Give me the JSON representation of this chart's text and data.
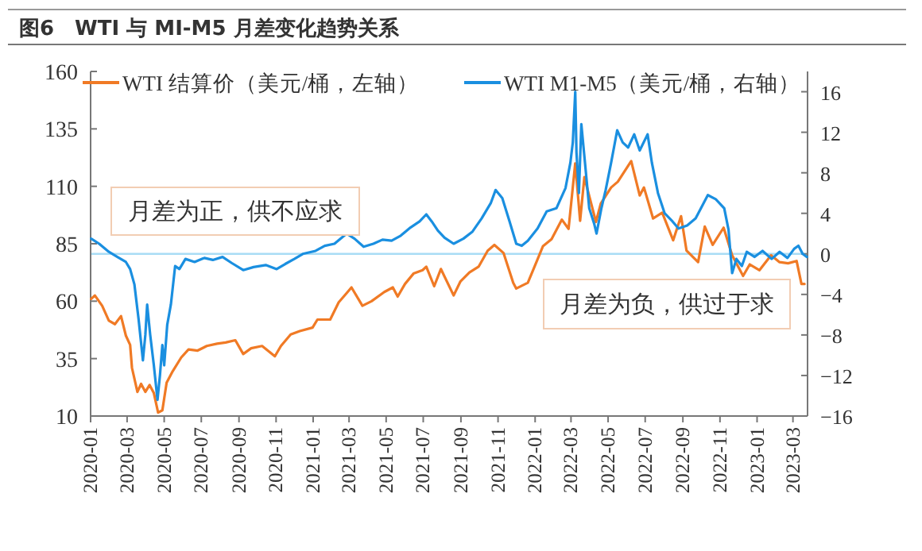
{
  "chart_data": {
    "type": "line",
    "title": "图6　WTI 与 MI-M5 月差变化趋势关系",
    "legend": "top",
    "xlim": [
      "2020-01-01",
      "2023-03-25"
    ],
    "xticks": [
      "2020-01",
      "2020-03",
      "2020-05",
      "2020-07",
      "2020-09",
      "2020-11",
      "2021-01",
      "2021-03",
      "2021-05",
      "2021-07",
      "2021-09",
      "2021-11",
      "2022-01",
      "2022-03",
      "2022-05",
      "2022-07",
      "2022-09",
      "2022-11",
      "2023-01",
      "2023-03"
    ],
    "ylim": [
      10,
      160
    ],
    "yticks": [
      10,
      35,
      60,
      85,
      110,
      135,
      160
    ],
    "y2lim": [
      -16,
      18
    ],
    "y2ticks": [
      -16,
      -12,
      -8,
      -4,
      0,
      4,
      8,
      12,
      16
    ],
    "ref_lines": [
      {
        "axis": "y2",
        "value": 0,
        "color": "#a8dcf5"
      }
    ],
    "annotations": [
      "月差为正，供不应求",
      "月差为负，供过于求"
    ],
    "series": [
      {
        "name": "WTI 结算价（美元/桶，左轴）",
        "type": "line",
        "color": "#f07a25",
        "x": [
          "2020-01-02",
          "2020-01-08",
          "2020-01-20",
          "2020-01-31",
          "2020-02-10",
          "2020-02-20",
          "2020-02-28",
          "2020-03-06",
          "2020-03-09",
          "2020-03-18",
          "2020-03-24",
          "2020-03-31",
          "2020-04-07",
          "2020-04-14",
          "2020-04-21",
          "2020-04-28",
          "2020-05-05",
          "2020-05-15",
          "2020-05-29",
          "2020-06-10",
          "2020-06-25",
          "2020-07-10",
          "2020-07-27",
          "2020-08-10",
          "2020-08-26",
          "2020-09-08",
          "2020-09-21",
          "2020-10-09",
          "2020-10-30",
          "2020-11-09",
          "2020-11-25",
          "2020-12-10",
          "2020-12-31",
          "2021-01-08",
          "2021-01-29",
          "2021-02-12",
          "2021-02-25",
          "2021-03-05",
          "2021-03-23",
          "2021-04-07",
          "2021-04-28",
          "2021-05-12",
          "2021-05-20",
          "2021-06-01",
          "2021-06-15",
          "2021-06-30",
          "2021-07-06",
          "2021-07-19",
          "2021-07-30",
          "2021-08-20",
          "2021-08-31",
          "2021-09-15",
          "2021-09-30",
          "2021-10-15",
          "2021-10-26",
          "2021-11-10",
          "2021-11-26",
          "2021-12-01",
          "2021-12-20",
          "2021-12-31",
          "2022-01-14",
          "2022-01-28",
          "2022-02-14",
          "2022-02-25",
          "2022-03-08",
          "2022-03-16",
          "2022-03-23",
          "2022-04-11",
          "2022-04-19",
          "2022-05-06",
          "2022-05-17",
          "2022-06-08",
          "2022-06-22",
          "2022-06-29",
          "2022-07-14",
          "2022-07-29",
          "2022-08-16",
          "2022-08-29",
          "2022-09-07",
          "2022-09-26",
          "2022-10-07",
          "2022-10-20",
          "2022-11-07",
          "2022-11-21",
          "2022-12-09",
          "2022-12-20",
          "2023-01-05",
          "2023-01-24",
          "2023-02-07",
          "2023-02-21",
          "2023-03-07",
          "2023-03-15",
          "2023-03-20"
        ],
        "values": [
          61,
          62.5,
          58,
          51.5,
          50,
          53.5,
          45,
          41,
          31,
          20.5,
          24,
          20.5,
          23.5,
          20,
          11.5,
          12.5,
          24.5,
          29.5,
          35.5,
          39,
          38.5,
          40.5,
          41.5,
          42,
          43,
          37,
          39.5,
          40.5,
          36,
          40.5,
          45.5,
          47,
          48.5,
          52,
          52,
          59.5,
          63.5,
          66,
          58,
          60,
          64,
          66,
          62,
          67.5,
          72,
          73.5,
          75,
          66.5,
          74,
          62.5,
          68.5,
          72.5,
          75,
          82,
          84.5,
          81,
          68,
          65.5,
          68,
          75,
          84,
          87,
          95.5,
          91.5,
          120,
          95,
          114,
          94.5,
          102.5,
          109.5,
          112,
          121,
          106,
          109.5,
          96,
          98.5,
          86.5,
          97,
          82,
          77,
          92.5,
          84.5,
          92,
          80,
          71,
          76,
          73.5,
          80,
          77,
          76.5,
          77.5,
          67.5,
          67.5
        ]
      },
      {
        "name": "WTI M1-M5（美元/桶，右轴）",
        "type": "line",
        "axis": "y2",
        "color": "#1a8fe0",
        "x": [
          "2020-01-02",
          "2020-01-15",
          "2020-01-31",
          "2020-02-14",
          "2020-02-28",
          "2020-03-06",
          "2020-03-13",
          "2020-03-20",
          "2020-03-27",
          "2020-03-31",
          "2020-04-03",
          "2020-04-08",
          "2020-04-14",
          "2020-04-20",
          "2020-04-24",
          "2020-04-28",
          "2020-05-01",
          "2020-05-06",
          "2020-05-12",
          "2020-05-19",
          "2020-05-26",
          "2020-06-05",
          "2020-06-20",
          "2020-07-06",
          "2020-07-20",
          "2020-08-05",
          "2020-08-20",
          "2020-09-08",
          "2020-09-25",
          "2020-10-15",
          "2020-11-02",
          "2020-11-16",
          "2020-12-01",
          "2020-12-15",
          "2021-01-05",
          "2021-01-20",
          "2021-02-05",
          "2021-02-25",
          "2021-03-10",
          "2021-03-25",
          "2021-04-10",
          "2021-04-25",
          "2021-05-10",
          "2021-05-25",
          "2021-06-10",
          "2021-06-25",
          "2021-07-06",
          "2021-07-15",
          "2021-07-25",
          "2021-08-05",
          "2021-08-20",
          "2021-09-05",
          "2021-09-20",
          "2021-10-05",
          "2021-10-20",
          "2021-10-28",
          "2021-11-08",
          "2021-11-20",
          "2021-12-01",
          "2021-12-10",
          "2021-12-20",
          "2022-01-05",
          "2022-01-20",
          "2022-02-05",
          "2022-02-20",
          "2022-02-28",
          "2022-03-04",
          "2022-03-08",
          "2022-03-10",
          "2022-03-14",
          "2022-03-18",
          "2022-03-24",
          "2022-03-31",
          "2022-04-08",
          "2022-04-12",
          "2022-04-20",
          "2022-04-27",
          "2022-05-06",
          "2022-05-16",
          "2022-05-25",
          "2022-06-03",
          "2022-06-13",
          "2022-06-22",
          "2022-07-05",
          "2022-07-12",
          "2022-07-22",
          "2022-08-02",
          "2022-08-15",
          "2022-08-25",
          "2022-09-08",
          "2022-09-22",
          "2022-10-05",
          "2022-10-12",
          "2022-10-25",
          "2022-11-08",
          "2022-11-15",
          "2022-11-21",
          "2022-11-28",
          "2022-12-07",
          "2022-12-15",
          "2022-12-28",
          "2023-01-10",
          "2023-01-25",
          "2023-02-07",
          "2023-02-20",
          "2023-03-03",
          "2023-03-10",
          "2023-03-17",
          "2023-03-24"
        ],
        "values": [
          1.5,
          1.0,
          0.2,
          -0.3,
          -0.8,
          -1.5,
          -3,
          -6.5,
          -10.5,
          -8,
          -5,
          -8,
          -11,
          -14.4,
          -12,
          -9,
          -11,
          -7,
          -5,
          -1.2,
          -1.5,
          -0.5,
          -0.8,
          -0.4,
          -0.6,
          -0.3,
          -0.9,
          -1.6,
          -1.3,
          -1.1,
          -1.5,
          -1.0,
          -0.5,
          0,
          0.3,
          0.8,
          1.0,
          2.0,
          1.5,
          0.7,
          1.0,
          1.4,
          1.3,
          1.8,
          2.6,
          3.2,
          3.9,
          3.2,
          2.3,
          1.6,
          1.0,
          1.5,
          2.2,
          3.5,
          5.0,
          6.3,
          5.5,
          3.2,
          1.0,
          0.8,
          1.3,
          2.5,
          4.2,
          4.5,
          6.5,
          9,
          11,
          16,
          10,
          6,
          12.8,
          9,
          4.5,
          3,
          2,
          4.5,
          6.3,
          9,
          12.2,
          11,
          10.5,
          11.8,
          10.2,
          11.8,
          9,
          6,
          4,
          3.2,
          2.5,
          2.8,
          3.5,
          5,
          5.8,
          5.4,
          4.5,
          2.4,
          -1.9,
          -0.5,
          -1.2,
          0.2,
          -0.3,
          0.3,
          -0.5,
          0.2,
          -0.4,
          0.5,
          0.8,
          0,
          -0.3
        ]
      }
    ]
  }
}
